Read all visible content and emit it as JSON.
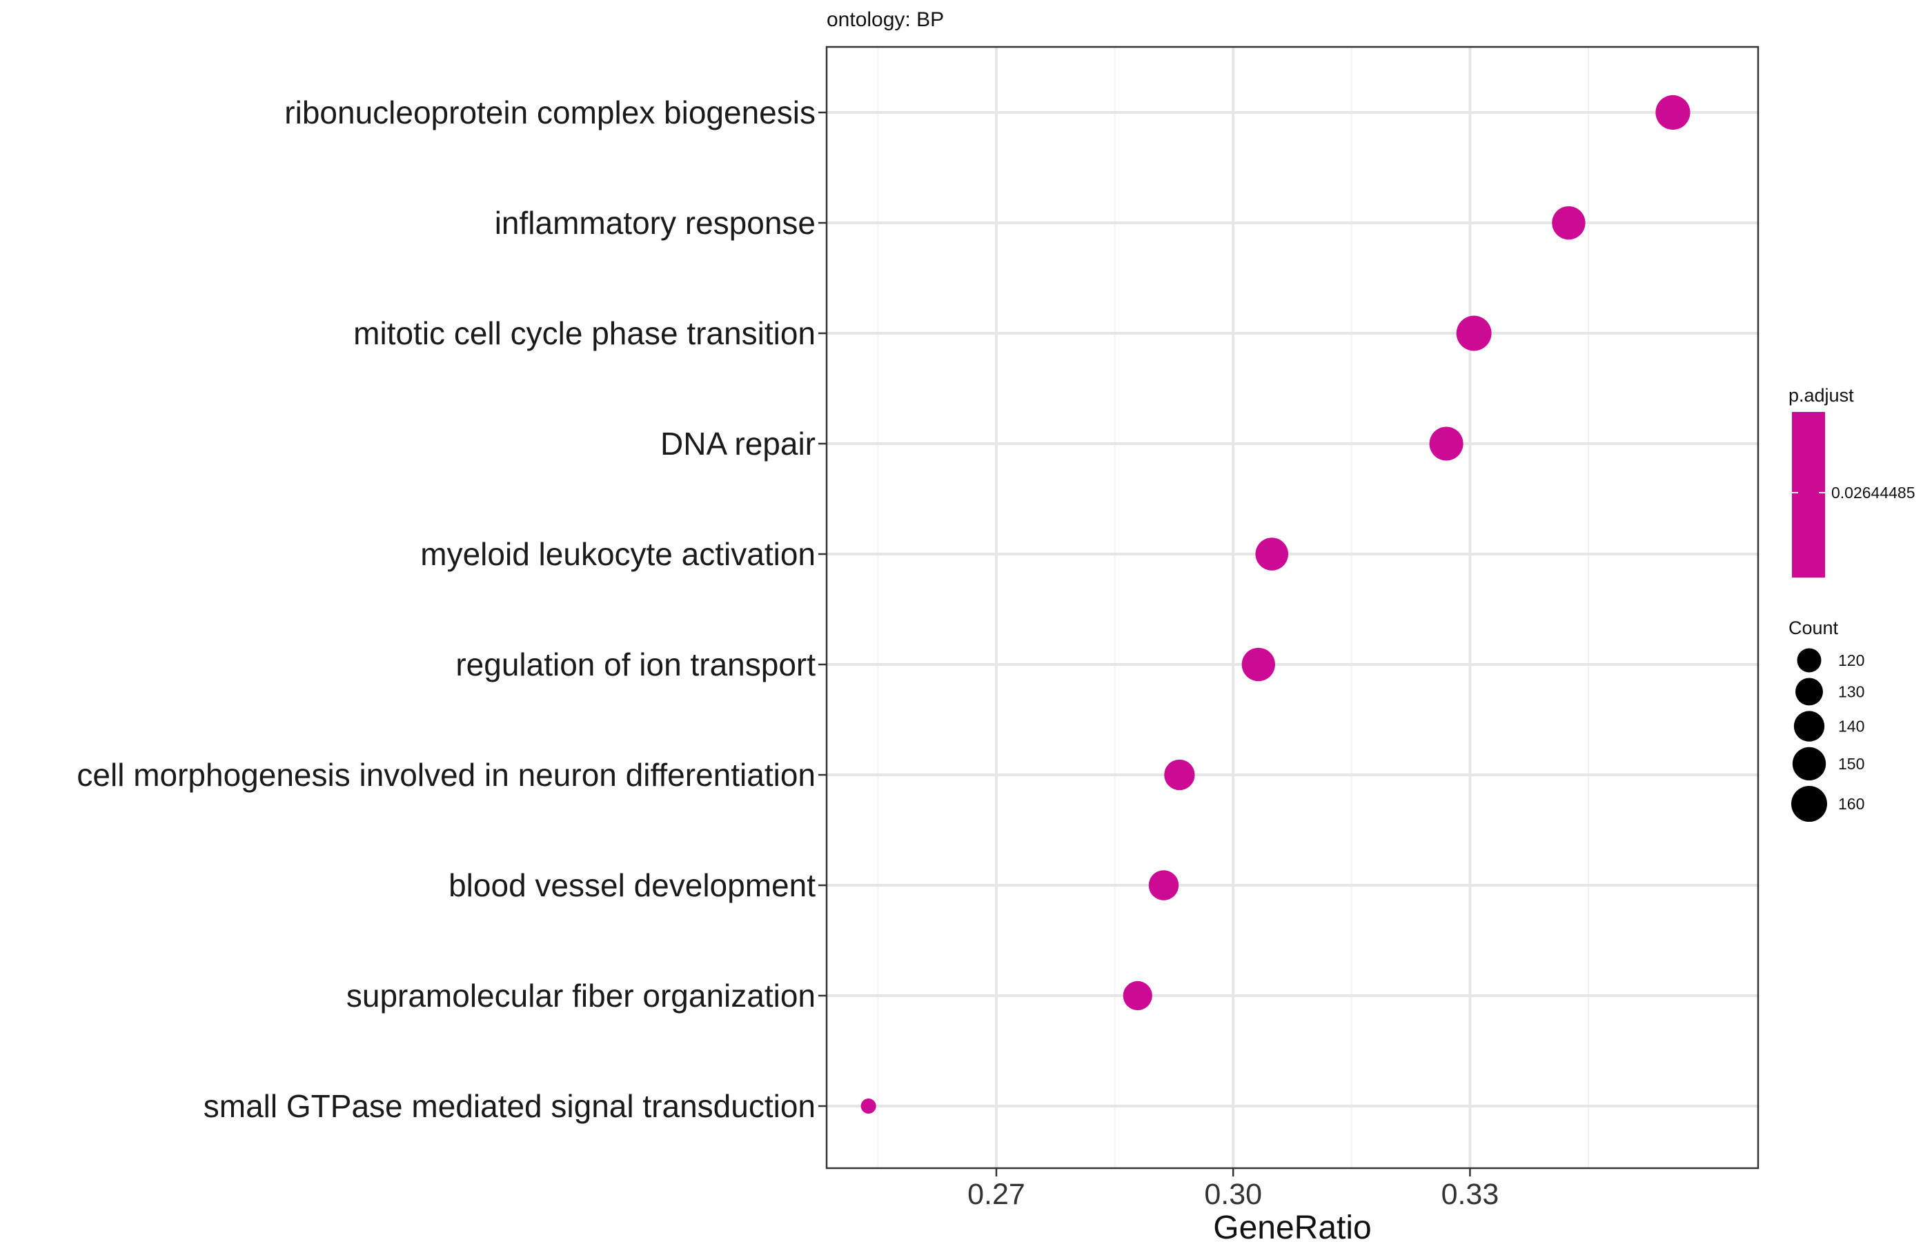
{
  "chart_data": {
    "type": "scatter",
    "subtitle": "ontology: BP",
    "xlabel": "GeneRatio",
    "ylabel": "",
    "xlim": [
      0.2485,
      0.3665
    ],
    "xticks": [
      0.27,
      0.3,
      0.33
    ],
    "xtick_labels": [
      "0.27",
      "0.30",
      "0.33"
    ],
    "grid": true,
    "legend_position": "right",
    "dot_color": "#CC0A94",
    "categories": [
      "ribonucleoprotein complex biogenesis",
      "inflammatory response",
      "mitotic cell cycle phase transition",
      "DNA repair",
      "myeloid leukocyte activation",
      "regulation of ion transport",
      "cell morphogenesis involved in neuron differentiation",
      "blood vessel development",
      "supramolecular fiber organization",
      "small GTPase mediated signal transduction"
    ],
    "gene_ratio": [
      0.3557,
      0.3425,
      0.3305,
      0.327,
      0.3049,
      0.3032,
      0.2932,
      0.2912,
      0.2879,
      0.2538
    ],
    "count": [
      155,
      150,
      157,
      152,
      148,
      150,
      140,
      138,
      135,
      100
    ],
    "p_adjust_legend": {
      "title": "p.adjust",
      "tick_label": "0.02644485",
      "color": "#CC0A94"
    },
    "count_legend": {
      "title": "Count",
      "values": [
        120,
        130,
        140,
        150,
        160
      ],
      "labels": [
        "120",
        "130",
        "140",
        "150",
        "160"
      ]
    }
  }
}
